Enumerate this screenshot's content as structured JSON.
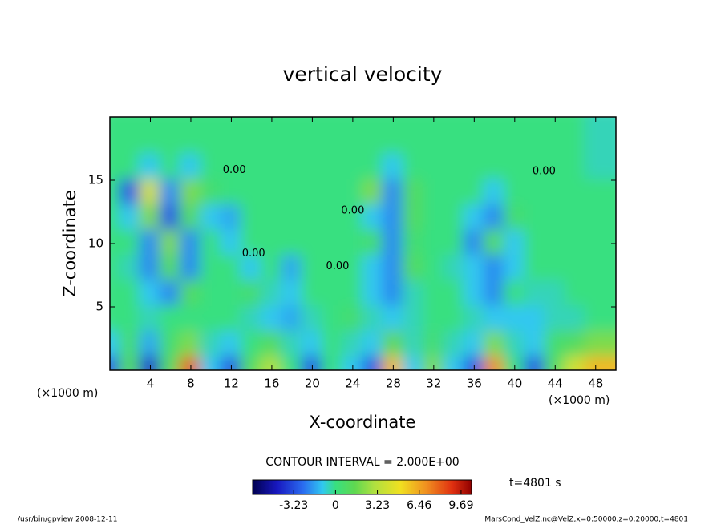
{
  "chart_data": {
    "type": "contour",
    "title": "vertical velocity",
    "xlabel": "X-coordinate",
    "ylabel": "Z-coordinate",
    "xunit": "(×1000 m)",
    "yunit": "(×1000 m)",
    "xlim": [
      0,
      50
    ],
    "ylim": [
      0,
      20
    ],
    "xticks": [
      4,
      8,
      12,
      16,
      20,
      24,
      28,
      32,
      36,
      40,
      44,
      48
    ],
    "yticks": [
      5,
      10,
      15
    ],
    "x": [
      1,
      3,
      5,
      7,
      9,
      11,
      13,
      15,
      17,
      19,
      21,
      23,
      25,
      27,
      29,
      31,
      33,
      35,
      37,
      39,
      41,
      43,
      45,
      47,
      49
    ],
    "y": [
      1,
      3,
      5,
      7,
      9,
      11,
      13,
      15,
      17,
      19
    ],
    "z": [
      [
        -3,
        1,
        -4,
        1,
        8,
        -1,
        -3,
        1,
        3,
        0,
        -3,
        0,
        -1,
        -3,
        6,
        -1,
        2,
        -1,
        -3,
        7,
        0,
        -3,
        1,
        4,
        6
      ],
      [
        -1,
        0.5,
        -1.5,
        0.5,
        2,
        -0.5,
        -1,
        0,
        1,
        -0.5,
        -1,
        0,
        -0.5,
        -1,
        1.5,
        -0.5,
        0.5,
        -0.5,
        -1,
        2,
        -0.5,
        -1,
        0.5,
        1,
        2
      ],
      [
        0,
        0,
        -0.5,
        0,
        0,
        0,
        0,
        -0.5,
        -1,
        -1.5,
        -0.5,
        0,
        0.5,
        -0.5,
        -1,
        -0.5,
        0,
        0,
        -0.5,
        -1,
        -1,
        -1,
        -0.5,
        -0.5,
        0
      ],
      [
        0,
        0,
        -1,
        -2,
        1,
        0,
        0,
        0.5,
        -0.5,
        -1,
        0,
        0,
        0,
        -1,
        -2,
        -0.5,
        0,
        0,
        -1,
        -2,
        0,
        -0.5,
        -0.5,
        0,
        0
      ],
      [
        0,
        -0.5,
        -2,
        1,
        -2,
        0,
        0,
        -1,
        0,
        -1.5,
        0,
        0,
        0,
        -1,
        -2,
        1,
        0,
        -0.5,
        -1,
        -2,
        -1,
        0,
        0,
        0,
        0
      ],
      [
        0,
        0,
        -2,
        2,
        -2,
        0,
        -1,
        0,
        0,
        0,
        0,
        0,
        0,
        0.5,
        -2,
        0.5,
        0,
        0,
        -2,
        1,
        -1,
        0,
        0,
        0,
        0
      ],
      [
        0,
        -1,
        2,
        -3,
        1,
        -1,
        -1.5,
        0,
        0,
        0,
        0,
        0,
        0,
        -1,
        -2,
        1,
        0,
        0,
        -1,
        -2,
        0.5,
        0,
        0,
        0,
        0
      ],
      [
        0,
        -3,
        4,
        -2,
        2,
        0.5,
        0,
        0,
        0,
        0,
        0,
        0,
        0,
        2,
        -2,
        1,
        0,
        0,
        0,
        -1,
        0,
        0,
        0,
        0,
        0
      ],
      [
        0,
        0,
        -1,
        0,
        -1,
        0,
        0,
        0,
        0,
        0,
        0,
        0,
        0,
        0,
        -1,
        0,
        0,
        0,
        0,
        0,
        0,
        0,
        0,
        0,
        -0.5
      ],
      [
        0,
        0,
        0,
        0,
        0,
        0,
        0,
        0,
        0,
        0,
        0,
        0,
        0,
        0,
        0,
        0,
        0,
        0,
        0,
        0,
        0,
        0,
        0,
        0,
        -0.5
      ]
    ],
    "zlim": [
      -6.4,
      10.5
    ],
    "colorscale": [
      [
        -6.4,
        "#000050"
      ],
      [
        -4.5,
        "#1818c0"
      ],
      [
        -2.5,
        "#2a6cf0"
      ],
      [
        -1,
        "#30c8f0"
      ],
      [
        0,
        "#38e080"
      ],
      [
        1.5,
        "#60d850"
      ],
      [
        3,
        "#b0e040"
      ],
      [
        5,
        "#f0e020"
      ],
      [
        7,
        "#f09020"
      ],
      [
        9,
        "#e03010"
      ],
      [
        10.5,
        "#900000"
      ]
    ],
    "colorbar_ticks": [
      -3.23,
      0,
      3.23,
      6.46,
      9.69
    ],
    "contour_labels": [
      {
        "text": "0.00",
        "x": 12.3,
        "y": 15.8
      },
      {
        "text": "0.00",
        "x": 24.0,
        "y": 12.6
      },
      {
        "text": "0.00",
        "x": 42.9,
        "y": 15.7
      },
      {
        "text": "0.00",
        "x": 14.2,
        "y": 9.2
      },
      {
        "text": "0.00",
        "x": 22.5,
        "y": 8.2
      }
    ],
    "contour_interval": "CONTOUR INTERVAL = 2.000E+00",
    "time_label": "t=4801 s",
    "footer_left": "/usr/bin/gpview   2008-12-11",
    "footer_right": "MarsCond_VelZ.nc@VelZ,x=0:50000,z=0:20000,t=4801"
  }
}
